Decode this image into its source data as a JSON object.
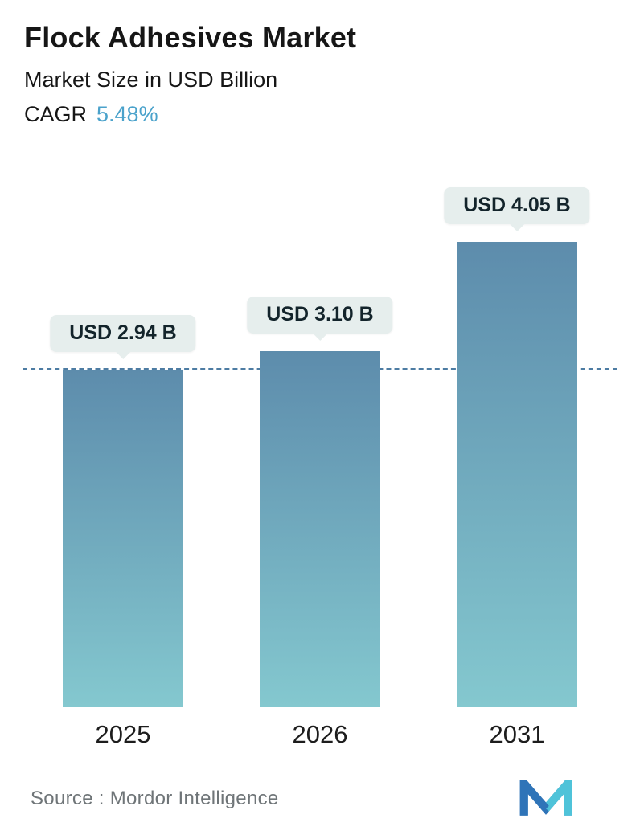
{
  "header": {
    "title": "Flock Adhesives Market",
    "subtitle": "Market Size in USD Billion",
    "cagr_label": "CAGR",
    "cagr_value": "5.48%"
  },
  "chart_data": {
    "type": "bar",
    "title": "Flock Adhesives Market",
    "ylabel": "Market Size in USD Billion",
    "categories": [
      "2025",
      "2026",
      "2031"
    ],
    "values": [
      2.94,
      3.1,
      4.05
    ],
    "value_labels": [
      "USD 2.94 B",
      "USD 3.10 B",
      "USD 4.05 B"
    ],
    "cagr_percent": 5.48,
    "ylim": [
      0,
      4.3
    ],
    "grid": false,
    "legend": "none",
    "dashed_reference_value": 2.94,
    "bar_gradient_top": "#5d8cac",
    "bar_gradient_bottom": "#84c8cf"
  },
  "footer": {
    "source_label": "Source :  Mordor Intelligence"
  },
  "colors": {
    "cagr_accent": "#4aa2cb",
    "badge_background": "#e6eeed",
    "dashed_line": "#4d7ca3",
    "text_dark": "#161616",
    "text_gray": "#6f7578"
  }
}
